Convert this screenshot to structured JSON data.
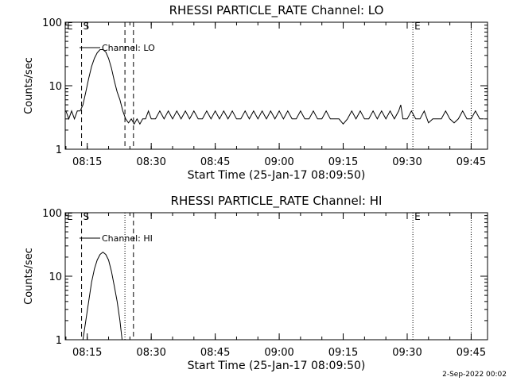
{
  "footer_date": "2-Sep-2022 00:02",
  "chart_data": [
    {
      "type": "line",
      "title": "RHESSI PARTICLE_RATE Channel: LO",
      "xlabel": "Start Time (25-Jan-17 08:09:50)",
      "ylabel": "Counts/sec",
      "yscale": "log",
      "ylim": [
        1,
        100
      ],
      "xlim": [
        "08:09:50",
        "09:48:50"
      ],
      "xticks": [
        "08:15",
        "08:30",
        "08:45",
        "09:00",
        "09:15",
        "09:30",
        "09:45"
      ],
      "yticks": [
        "1",
        "10",
        "100"
      ],
      "legend": "Channel: LO",
      "markers": [
        {
          "label": "E",
          "x": "08:09:50",
          "style": "dotted"
        },
        {
          "label": "S",
          "x": "08:13:40",
          "style": "dashed"
        },
        {
          "label": "",
          "x": "08:23:50",
          "style": "dashed"
        },
        {
          "label": "",
          "x": "08:25:50",
          "style": "dashed"
        },
        {
          "label": "E",
          "x": "09:31:20",
          "style": "dotted"
        },
        {
          "label": "",
          "x": "09:45:00",
          "style": "dotted"
        }
      ],
      "series": [
        {
          "points": [
            [
              "08:10:00",
              4
            ],
            [
              "08:10:40",
              3
            ],
            [
              "08:11:20",
              4
            ],
            [
              "08:12:00",
              3
            ],
            [
              "08:12:40",
              4
            ],
            [
              "08:13:20",
              4
            ],
            [
              "08:14:00",
              5
            ],
            [
              "08:14:40",
              8
            ],
            [
              "08:15:20",
              13
            ],
            [
              "08:16:00",
              20
            ],
            [
              "08:16:40",
              27
            ],
            [
              "08:17:20",
              33
            ],
            [
              "08:18:00",
              37
            ],
            [
              "08:18:40",
              37
            ],
            [
              "08:19:20",
              34
            ],
            [
              "08:20:00",
              27
            ],
            [
              "08:20:40",
              19
            ],
            [
              "08:21:20",
              12
            ],
            [
              "08:22:00",
              8
            ],
            [
              "08:22:40",
              6
            ],
            [
              "08:23:20",
              4
            ],
            [
              "08:24:00",
              3
            ],
            [
              "08:24:40",
              2.6
            ],
            [
              "08:25:20",
              3
            ],
            [
              "08:26:00",
              2.5
            ],
            [
              "08:26:40",
              3
            ],
            [
              "08:27:20",
              2.5
            ],
            [
              "08:28:00",
              3
            ],
            [
              "08:28:40",
              3
            ],
            [
              "08:29:20",
              4
            ],
            [
              "08:30:00",
              3
            ],
            [
              "08:31:00",
              3
            ],
            [
              "08:32:00",
              4
            ],
            [
              "08:33:00",
              3
            ],
            [
              "08:34:00",
              4
            ],
            [
              "08:35:00",
              3
            ],
            [
              "08:36:00",
              4
            ],
            [
              "08:37:00",
              3
            ],
            [
              "08:38:00",
              4
            ],
            [
              "08:39:00",
              3
            ],
            [
              "08:40:00",
              4
            ],
            [
              "08:41:00",
              3
            ],
            [
              "08:42:00",
              3
            ],
            [
              "08:43:00",
              4
            ],
            [
              "08:44:00",
              3
            ],
            [
              "08:45:00",
              4
            ],
            [
              "08:46:00",
              3
            ],
            [
              "08:47:00",
              4
            ],
            [
              "08:48:00",
              3
            ],
            [
              "08:49:00",
              4
            ],
            [
              "08:50:00",
              3
            ],
            [
              "08:51:00",
              3
            ],
            [
              "08:52:00",
              4
            ],
            [
              "08:53:00",
              3
            ],
            [
              "08:54:00",
              4
            ],
            [
              "08:55:00",
              3
            ],
            [
              "08:56:00",
              4
            ],
            [
              "08:57:00",
              3
            ],
            [
              "08:58:00",
              4
            ],
            [
              "08:59:00",
              3
            ],
            [
              "09:00:00",
              4
            ],
            [
              "09:01:00",
              3
            ],
            [
              "09:02:00",
              4
            ],
            [
              "09:03:00",
              3
            ],
            [
              "09:04:00",
              3
            ],
            [
              "09:05:00",
              4
            ],
            [
              "09:06:00",
              3
            ],
            [
              "09:07:00",
              3
            ],
            [
              "09:08:00",
              4
            ],
            [
              "09:09:00",
              3
            ],
            [
              "09:10:00",
              3
            ],
            [
              "09:11:00",
              4
            ],
            [
              "09:12:00",
              3
            ],
            [
              "09:13:00",
              3
            ],
            [
              "09:14:00",
              3
            ],
            [
              "09:15:00",
              2.5
            ],
            [
              "09:16:00",
              3
            ],
            [
              "09:17:00",
              4
            ],
            [
              "09:18:00",
              3
            ],
            [
              "09:19:00",
              4
            ],
            [
              "09:20:00",
              3
            ],
            [
              "09:21:00",
              3
            ],
            [
              "09:22:00",
              4
            ],
            [
              "09:23:00",
              3
            ],
            [
              "09:24:00",
              4
            ],
            [
              "09:25:00",
              3
            ],
            [
              "09:26:00",
              4
            ],
            [
              "09:27:00",
              3
            ],
            [
              "09:28:00",
              4
            ],
            [
              "09:28:30",
              5
            ],
            [
              "09:29:00",
              3
            ],
            [
              "09:30:00",
              3
            ],
            [
              "09:31:00",
              4
            ],
            [
              "09:32:00",
              3
            ],
            [
              "09:33:00",
              3
            ],
            [
              "09:34:00",
              4
            ],
            [
              "09:35:00",
              2.6
            ],
            [
              "09:36:00",
              3
            ],
            [
              "09:37:00",
              3
            ],
            [
              "09:38:00",
              3
            ],
            [
              "09:39:00",
              4
            ],
            [
              "09:40:00",
              3
            ],
            [
              "09:41:00",
              2.6
            ],
            [
              "09:42:00",
              3
            ],
            [
              "09:43:00",
              4
            ],
            [
              "09:44:00",
              3
            ],
            [
              "09:45:00",
              3
            ],
            [
              "09:46:00",
              4
            ],
            [
              "09:47:00",
              3
            ],
            [
              "09:48:00",
              3
            ]
          ]
        }
      ]
    },
    {
      "type": "line",
      "title": "RHESSI PARTICLE_RATE Channel: HI",
      "xlabel": "Start Time (25-Jan-17 08:09:50)",
      "ylabel": "Counts/sec",
      "yscale": "log",
      "ylim": [
        1,
        100
      ],
      "xlim": [
        "08:09:50",
        "09:48:50"
      ],
      "xticks": [
        "08:15",
        "08:30",
        "08:45",
        "09:00",
        "09:15",
        "09:30",
        "09:45"
      ],
      "yticks": [
        "1",
        "10",
        "100"
      ],
      "legend": "Channel: HI",
      "markers": [
        {
          "label": "E",
          "x": "08:09:50",
          "style": "dotted"
        },
        {
          "label": "S",
          "x": "08:13:40",
          "style": "dashed"
        },
        {
          "label": "",
          "x": "08:23:50",
          "style": "dotted"
        },
        {
          "label": "",
          "x": "08:25:50",
          "style": "dashed"
        },
        {
          "label": "E",
          "x": "09:31:20",
          "style": "dotted"
        },
        {
          "label": "",
          "x": "09:45:00",
          "style": "dotted"
        }
      ],
      "series": [
        {
          "points": [
            [
              "08:14:00",
              1
            ],
            [
              "08:14:40",
              2
            ],
            [
              "08:15:20",
              4
            ],
            [
              "08:16:00",
              8
            ],
            [
              "08:16:40",
              13
            ],
            [
              "08:17:20",
              18
            ],
            [
              "08:18:00",
              22
            ],
            [
              "08:18:40",
              24
            ],
            [
              "08:19:20",
              22
            ],
            [
              "08:20:00",
              18
            ],
            [
              "08:20:40",
              12
            ],
            [
              "08:21:20",
              7
            ],
            [
              "08:22:00",
              4
            ],
            [
              "08:22:40",
              2
            ],
            [
              "08:23:10",
              1
            ]
          ]
        }
      ]
    }
  ]
}
